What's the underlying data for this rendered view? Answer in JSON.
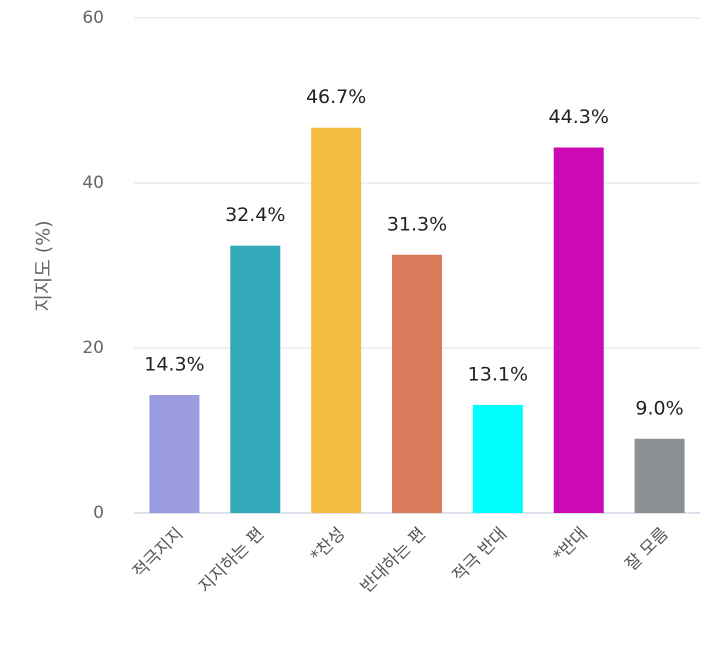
{
  "chart_data": {
    "type": "bar",
    "y_label": "지지도 (%)",
    "categories": [
      "적극지지",
      "지지하는 편",
      "*찬성",
      "반대하는 편",
      "적극 반대",
      "*반대",
      "잘 모름"
    ],
    "values": [
      14.3,
      32.4,
      46.7,
      31.3,
      13.1,
      44.3,
      9.0
    ],
    "value_labels": [
      "14.3%",
      "32.4%",
      "46.7%",
      "31.3%",
      "13.1%",
      "44.3%",
      "9.0%"
    ],
    "colors": [
      "#9b9be0",
      "#31a9b8",
      "#f4bd42",
      "#dc7a5c",
      "#00ffff",
      "#cc0ab4",
      "#8c9194"
    ],
    "ylim": [
      0,
      60
    ],
    "yticks": [
      0,
      20,
      40,
      60
    ],
    "grid": true
  }
}
